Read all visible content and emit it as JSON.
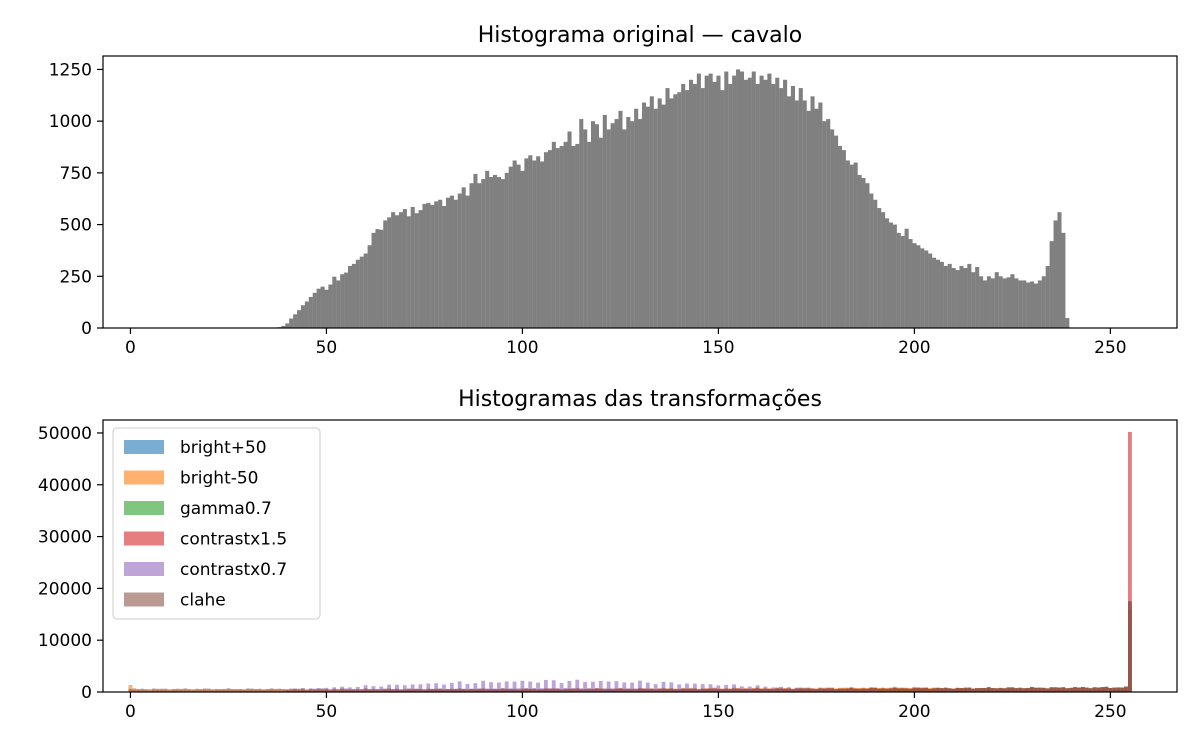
{
  "chart_data": [
    {
      "type": "bar",
      "title": "Histograma original — cavalo",
      "xlabel": "",
      "ylabel": "",
      "xlim": [
        -7,
        267
      ],
      "ylim": [
        0,
        1315
      ],
      "xticks": [
        0,
        50,
        100,
        150,
        200,
        250
      ],
      "yticks": [
        0,
        250,
        500,
        750,
        1000,
        1250
      ],
      "bar_color": "#808080",
      "series": [
        {
          "x_start": 38,
          "values": [
            4,
            10,
            22,
            46,
            66,
            86,
            110,
            128,
            150,
            170,
            190,
            200,
            185,
            210,
            248,
            230,
            260,
            268,
            300,
            310,
            330,
            345,
            360,
            400,
            460,
            478,
            475,
            520,
            535,
            560,
            545,
            560,
            575,
            540,
            585,
            555,
            570,
            600,
            605,
            595,
            612,
            620,
            590,
            630,
            640,
            620,
            650,
            680,
            640,
            700,
            745,
            700,
            720,
            760,
            730,
            740,
            730,
            720,
            750,
            780,
            810,
            790,
            760,
            820,
            835,
            810,
            830,
            805,
            850,
            860,
            900,
            870,
            880,
            900,
            950,
            880,
            890,
            1010,
            960,
            900,
            1000,
            985,
            920,
            1030,
            960,
            990,
            1010,
            1050,
            960,
            1020,
            1000,
            1060,
            1010,
            1090,
            1070,
            1120,
            1060,
            1110,
            1080,
            1160,
            1110,
            1130,
            1140,
            1180,
            1150,
            1200,
            1180,
            1230,
            1160,
            1220,
            1230,
            1190,
            1220,
            1150,
            1240,
            1180,
            1220,
            1250,
            1240,
            1200,
            1210,
            1240,
            1180,
            1220,
            1200,
            1230,
            1180,
            1210,
            1160,
            1200,
            1120,
            1170,
            1100,
            1160,
            1100,
            1050,
            1120,
            1060,
            1090,
            1000,
            1010,
            960,
            930,
            880,
            860,
            810,
            790,
            800,
            740,
            725,
            700,
            650,
            620,
            580,
            560,
            530,
            510,
            500,
            460,
            445,
            480,
            430,
            410,
            400,
            385,
            375,
            360,
            340,
            330,
            320,
            300,
            310,
            290,
            280,
            300,
            290,
            310,
            270,
            295,
            250,
            230,
            250,
            240,
            270,
            250,
            240,
            245,
            260,
            240,
            230,
            230,
            220,
            225,
            215,
            230,
            250,
            300,
            420,
            520,
            560,
            460,
            48
          ]
        }
      ]
    },
    {
      "type": "bar",
      "title": "Histogramas das transformações",
      "xlabel": "",
      "ylabel": "",
      "xlim": [
        -7,
        267
      ],
      "ylim": [
        0,
        52500
      ],
      "xticks": [
        0,
        50,
        100,
        150,
        200,
        250
      ],
      "yticks": [
        0,
        10000,
        20000,
        30000,
        40000,
        50000
      ],
      "legend": "upper left",
      "series": [
        {
          "name": "bright+50",
          "color": "#1f77b4",
          "shape": "ramp",
          "x0": 88,
          "x1": 254,
          "v0": 200,
          "v1": 900,
          "spike_x": 255,
          "spike_v": 17500
        },
        {
          "name": "bright-50",
          "color": "#ff7f0e",
          "shape": "ramp",
          "x0": 0,
          "x1": 205,
          "v0": 350,
          "v1": 900,
          "spike_x": 0,
          "spike_v": 1350
        },
        {
          "name": "gamma0.7",
          "color": "#2ca02c",
          "shape": "ramp",
          "x0": 68,
          "x1": 254,
          "v0": 300,
          "v1": 900,
          "spike_x": 255,
          "spike_v": 16000
        },
        {
          "name": "contrastx1.5",
          "color": "#d62728",
          "shape": "ramp",
          "x0": 40,
          "x1": 254,
          "v0": 250,
          "v1": 900,
          "spike_x": 255,
          "spike_v": 50200
        },
        {
          "name": "contrastx0.7",
          "color": "#9467bd",
          "shape": "hump",
          "x0": 40,
          "x1": 190,
          "peak_x": 110,
          "peak_v": 2100
        },
        {
          "name": "clahe",
          "color": "#8c564b",
          "shape": "flat",
          "x0": 0,
          "x1": 254,
          "v0": 600,
          "spike_x": 255,
          "spike_v": 17500
        }
      ]
    }
  ]
}
